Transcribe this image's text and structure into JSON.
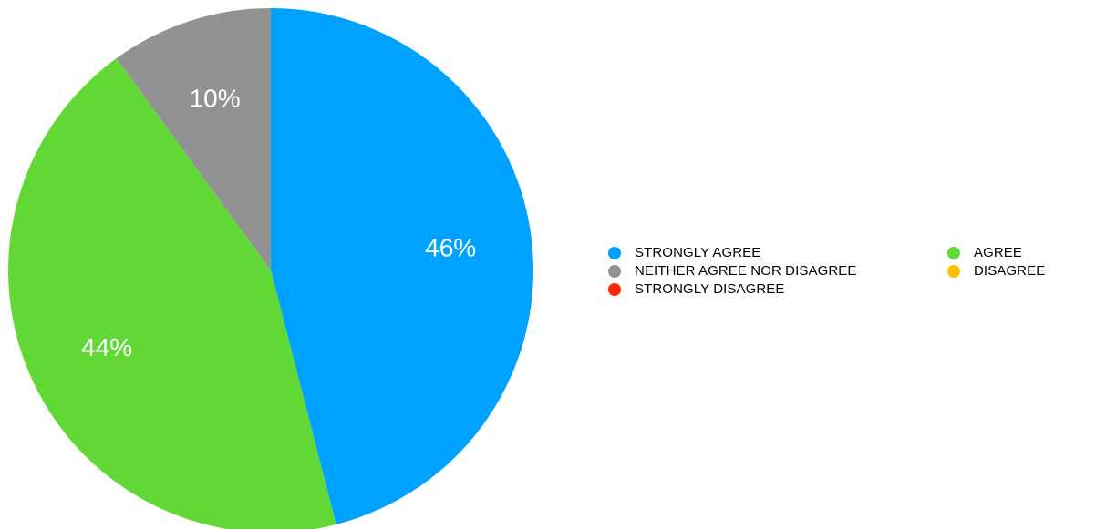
{
  "chart_data": {
    "type": "pie",
    "title": "",
    "slices": [
      {
        "label": "STRONGLY AGREE",
        "value": 46,
        "display": "46%",
        "color": "#00A2FF"
      },
      {
        "label": "AGREE",
        "value": 44,
        "display": "44%",
        "color": "#61D836"
      },
      {
        "label": "NEITHER AGREE NOR DISAGREE",
        "value": 10,
        "display": "10%",
        "color": "#929292"
      },
      {
        "label": "DISAGREE",
        "value": 0,
        "display": "",
        "color": "#FFC000"
      },
      {
        "label": "STRONGLY DISAGREE",
        "value": 0,
        "display": "",
        "color": "#FF2600"
      }
    ],
    "legend_placement": "right",
    "legend_order": [
      "STRONGLY AGREE",
      "AGREE",
      "NEITHER AGREE NOR DISAGREE",
      "DISAGREE",
      "STRONGLY DISAGREE"
    ]
  }
}
